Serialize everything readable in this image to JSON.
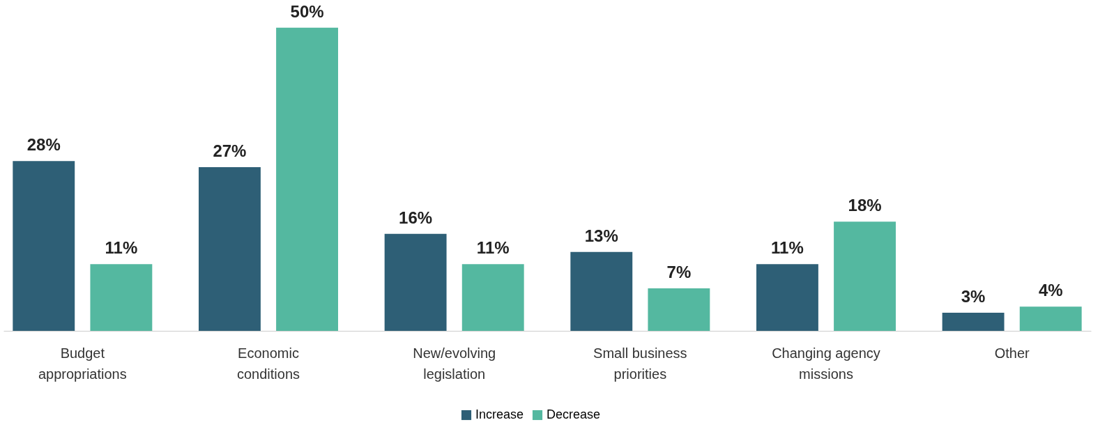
{
  "chart_data": {
    "type": "bar",
    "categories": [
      "Budget appropriations",
      "Economic conditions",
      "New/evolving legislation",
      "Small business priorities",
      "Changing agency missions",
      "Other"
    ],
    "series": [
      {
        "name": "Increase",
        "color": "#2e5f76",
        "values": [
          28,
          27,
          16,
          13,
          11,
          3
        ],
        "value_labels": [
          "28%",
          "27%",
          "16%",
          "13%",
          "11%",
          "3%"
        ]
      },
      {
        "name": "Decrease",
        "color": "#54b8a0",
        "values": [
          11,
          50,
          11,
          7,
          18,
          4
        ],
        "value_labels": [
          "11%",
          "50%",
          "11%",
          "7%",
          "18%",
          "4%"
        ]
      }
    ],
    "legend": "bottom"
  }
}
